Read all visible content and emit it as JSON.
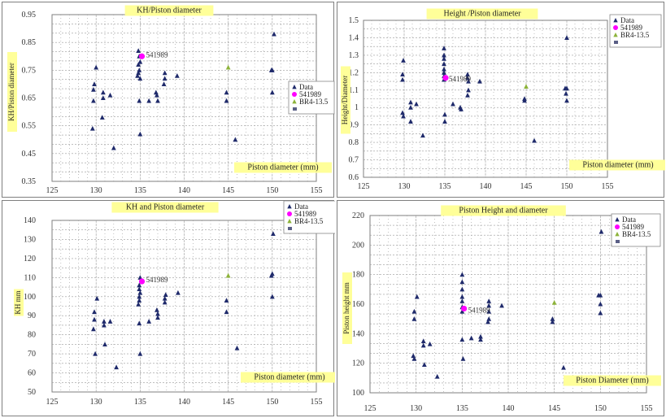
{
  "colors": {
    "data": "#1f2a6b",
    "highlight": "#ff00ff",
    "br": "#8db33a",
    "extra": "#5a5f86",
    "title_bg": "#ffff99",
    "grid": "#9a9a9a"
  },
  "chart_data": [
    {
      "type": "scatter",
      "title": "KH/Piston diameter",
      "xlabel": "Piston diameter (mm)",
      "ylabel": "KH/Piston diameter",
      "xlim": [
        125,
        155
      ],
      "ylim": [
        0.35,
        0.95
      ],
      "xticks": [
        "125",
        "130",
        "135",
        "140",
        "145",
        "150",
        "155"
      ],
      "yticks": [
        "0.35",
        "0.45",
        "0.55",
        "0.65",
        "0.75",
        "0.85",
        "0.95"
      ],
      "grid": true,
      "legend": {
        "position": "right",
        "entries": [
          "Data",
          "541989",
          "BR4-13.5"
        ]
      },
      "annotation": "541989",
      "series": [
        {
          "name": "Data",
          "points": [
            [
              130,
              0.76
            ],
            [
              129.8,
              0.7
            ],
            [
              129.7,
              0.68
            ],
            [
              129.7,
              0.64
            ],
            [
              129.6,
              0.54
            ],
            [
              130.8,
              0.67
            ],
            [
              130.8,
              0.65
            ],
            [
              130.7,
              0.58
            ],
            [
              131.6,
              0.66
            ],
            [
              132,
              0.47
            ],
            [
              134.8,
              0.82
            ],
            [
              134.9,
              0.8
            ],
            [
              135,
              0.78
            ],
            [
              134.8,
              0.77
            ],
            [
              134.9,
              0.75
            ],
            [
              134.8,
              0.74
            ],
            [
              134.7,
              0.73
            ],
            [
              135,
              0.72
            ],
            [
              134.9,
              0.64
            ],
            [
              135,
              0.52
            ],
            [
              136,
              0.64
            ],
            [
              136.8,
              0.67
            ],
            [
              136.9,
              0.66
            ],
            [
              137,
              0.64
            ],
            [
              137.8,
              0.74
            ],
            [
              137.8,
              0.72
            ],
            [
              137.7,
              0.7
            ],
            [
              139.2,
              0.73
            ],
            [
              144.8,
              0.67
            ],
            [
              144.8,
              0.64
            ],
            [
              145.8,
              0.5
            ],
            [
              149.9,
              0.75
            ],
            [
              150,
              0.75
            ],
            [
              150.2,
              0.88
            ],
            [
              150,
              0.67
            ]
          ]
        },
        {
          "name": "541989",
          "points": [
            [
              135.2,
              0.8
            ]
          ]
        },
        {
          "name": "BR4-13.5",
          "points": [
            [
              145,
              0.76
            ]
          ]
        }
      ]
    },
    {
      "type": "scatter",
      "title": "Height /Piston diameter",
      "xlabel": "Piston diameter (mm)",
      "ylabel": "Height/Diameter",
      "xlim": [
        125,
        155
      ],
      "ylim": [
        0.6,
        1.5
      ],
      "xticks": [
        "125",
        "130",
        "135",
        "140",
        "145",
        "150",
        "155"
      ],
      "yticks": [
        "0.6",
        "0.7",
        "0.8",
        "0.9",
        "1",
        "1.1",
        "1.2",
        "1.3",
        "1.4",
        "1.5"
      ],
      "grid": true,
      "legend": {
        "position": "top-right",
        "entries": [
          "Data",
          "541989",
          "BR4-13.5"
        ]
      },
      "annotation": "541989",
      "series": [
        {
          "name": "Data",
          "points": [
            [
              129.9,
              1.27
            ],
            [
              129.8,
              1.19
            ],
            [
              129.8,
              1.16
            ],
            [
              129.8,
              0.97
            ],
            [
              129.9,
              0.95
            ],
            [
              130.8,
              1.03
            ],
            [
              130.8,
              1.0
            ],
            [
              130.8,
              0.92
            ],
            [
              131.5,
              1.02
            ],
            [
              132.3,
              0.84
            ],
            [
              134.9,
              1.34
            ],
            [
              134.9,
              1.3
            ],
            [
              134.9,
              1.28
            ],
            [
              134.9,
              1.25
            ],
            [
              134.9,
              1.22
            ],
            [
              134.9,
              1.2
            ],
            [
              134.9,
              1.18
            ],
            [
              134.9,
              1.16
            ],
            [
              135,
              0.92
            ],
            [
              135,
              0.96
            ],
            [
              136,
              1.02
            ],
            [
              136.9,
              1.0
            ],
            [
              137,
              0.99
            ],
            [
              137.8,
              1.19
            ],
            [
              137.8,
              1.17
            ],
            [
              137.9,
              1.15
            ],
            [
              137.9,
              1.1
            ],
            [
              137.8,
              1.07
            ],
            [
              139.3,
              1.15
            ],
            [
              144.8,
              1.04
            ],
            [
              144.8,
              1.05
            ],
            [
              146,
              0.81
            ],
            [
              150,
              1.4
            ],
            [
              149.8,
              1.11
            ],
            [
              150,
              1.11
            ],
            [
              149.9,
              1.08
            ],
            [
              150,
              1.04
            ]
          ]
        },
        {
          "name": "541989",
          "points": [
            [
              135.1,
              1.17
            ]
          ]
        },
        {
          "name": "BR4-13.5",
          "points": [
            [
              145,
              1.12
            ]
          ]
        }
      ]
    },
    {
      "type": "scatter",
      "title": "KH and Piston diameter",
      "xlabel": "Piston diameter (mm)",
      "ylabel": "KH mm",
      "xlim": [
        125,
        155
      ],
      "ylim": [
        50,
        140
      ],
      "xticks": [
        "125",
        "130",
        "135",
        "140",
        "145",
        "150",
        "155"
      ],
      "yticks": [
        "50",
        "60",
        "70",
        "80",
        "90",
        "100",
        "110",
        "120",
        "130",
        "140"
      ],
      "grid": true,
      "legend": {
        "position": "top-right",
        "entries": [
          "Data",
          "541989",
          "BR4-13.5"
        ]
      },
      "annotation": "541989",
      "series": [
        {
          "name": "Data",
          "points": [
            [
              130.1,
              99
            ],
            [
              129.8,
              92
            ],
            [
              129.8,
              88
            ],
            [
              129.7,
              83
            ],
            [
              129.9,
              70
            ],
            [
              130.9,
              87
            ],
            [
              130.9,
              85
            ],
            [
              131,
              75
            ],
            [
              131.6,
              87
            ],
            [
              132.3,
              63
            ],
            [
              135,
              110
            ],
            [
              134.9,
              106
            ],
            [
              134.9,
              104
            ],
            [
              135,
              102
            ],
            [
              134.9,
              100
            ],
            [
              134.9,
              98
            ],
            [
              134.8,
              96
            ],
            [
              134.9,
              86
            ],
            [
              135,
              70
            ],
            [
              136,
              87
            ],
            [
              137,
              91
            ],
            [
              137,
              89
            ],
            [
              136.9,
              93
            ],
            [
              137.9,
              101
            ],
            [
              137.8,
              99
            ],
            [
              137.8,
              97
            ],
            [
              139.3,
              102
            ],
            [
              144.8,
              98
            ],
            [
              144.8,
              92
            ],
            [
              146,
              73
            ],
            [
              150,
              112
            ],
            [
              149.9,
              111
            ],
            [
              150.1,
              133
            ],
            [
              150,
              100
            ]
          ]
        },
        {
          "name": "541989",
          "points": [
            [
              135.2,
              108
            ]
          ]
        },
        {
          "name": "BR4-13.5",
          "points": [
            [
              145,
              111
            ]
          ]
        }
      ]
    },
    {
      "type": "scatter",
      "title": "Piston Height and diameter",
      "xlabel": "Piston Diameter (mm)",
      "ylabel": "Piston height mm",
      "xlim": [
        125,
        155
      ],
      "ylim": [
        100,
        220
      ],
      "xticks": [
        "125",
        "130",
        "135",
        "140",
        "145",
        "150",
        "155"
      ],
      "yticks": [
        "100",
        "120",
        "140",
        "160",
        "180",
        "200",
        "220"
      ],
      "grid": true,
      "legend": {
        "position": "top-right",
        "entries": [
          "Data",
          "541989",
          "BR4-13.5"
        ]
      },
      "annotation": "541989",
      "series": [
        {
          "name": "Data",
          "points": [
            [
              130.1,
              165
            ],
            [
              129.8,
              155
            ],
            [
              129.8,
              150
            ],
            [
              129.7,
              125
            ],
            [
              129.8,
              123
            ],
            [
              130.8,
              135
            ],
            [
              130.8,
              132
            ],
            [
              130.9,
              119
            ],
            [
              131.5,
              133
            ],
            [
              132.3,
              111
            ],
            [
              135,
              180
            ],
            [
              135,
              175
            ],
            [
              135,
              170
            ],
            [
              135,
              165
            ],
            [
              135,
              162
            ],
            [
              135,
              158
            ],
            [
              135,
              155
            ],
            [
              135,
              136
            ],
            [
              135.1,
              123
            ],
            [
              136,
              137
            ],
            [
              137,
              138
            ],
            [
              137,
              136
            ],
            [
              137.9,
              162
            ],
            [
              137.9,
              159
            ],
            [
              137.9,
              155
            ],
            [
              137.9,
              150
            ],
            [
              137.8,
              148
            ],
            [
              139.3,
              159
            ],
            [
              144.8,
              150
            ],
            [
              144.8,
              148
            ],
            [
              146,
              117
            ],
            [
              150,
              166
            ],
            [
              149.8,
              166
            ],
            [
              150.1,
              209
            ],
            [
              150,
              160
            ],
            [
              150,
              154
            ]
          ]
        },
        {
          "name": "541989",
          "points": [
            [
              135.2,
              157
            ]
          ]
        },
        {
          "name": "BR4-13.5",
          "points": [
            [
              145,
              161
            ]
          ]
        }
      ]
    }
  ]
}
